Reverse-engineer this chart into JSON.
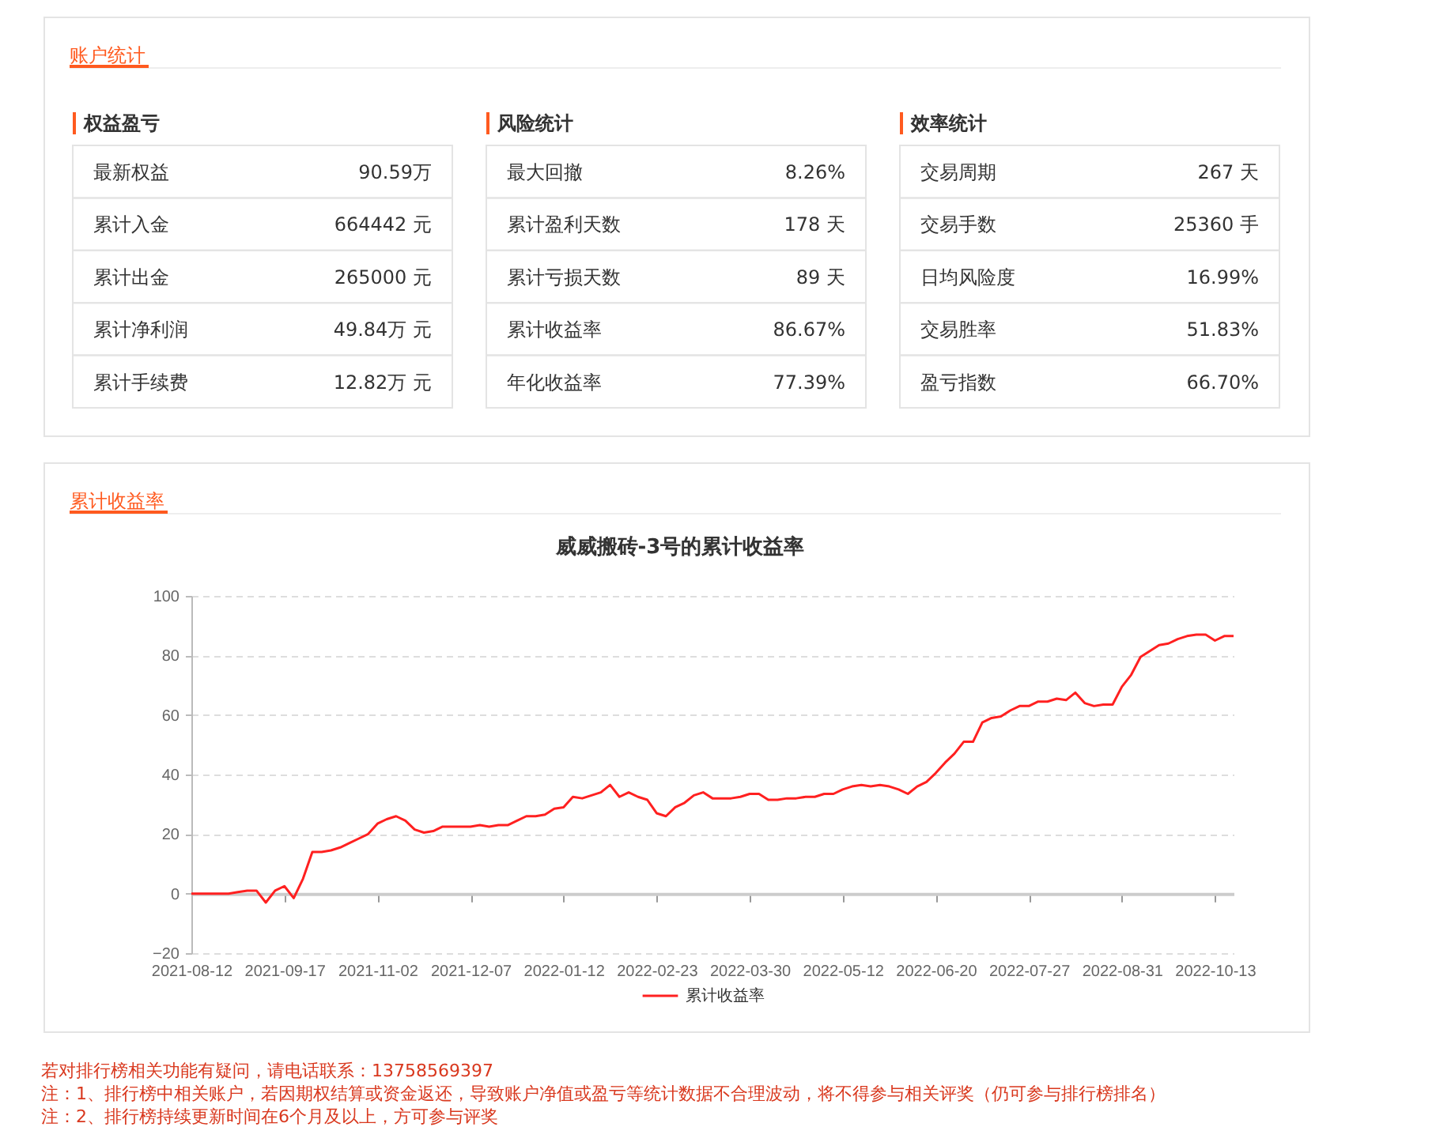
{
  "chart_data": [
    {
      "type": "other",
      "title": "账户统计",
      "annotations": [
        "权益盈亏",
        "最新权益",
        "90.59万",
        "累计入金",
        "664442 元",
        "累计出金",
        "265000 元",
        "累计净利润",
        "49.84万 元",
        "累计手续费",
        "12.82万 元",
        "风险统计",
        "最大回撤",
        "8.26%",
        "累计盈利天数",
        "178 天",
        "累计亏损天数",
        "89 天",
        "累计收益率",
        "86.67%",
        "年化收益率",
        "77.39%",
        "效率统计",
        "交易周期",
        "267 天",
        "交易手数",
        "25360 手",
        "日均风险度",
        "16.99%",
        "交易胜率",
        "51.83%",
        "盈亏指数",
        "66.70%"
      ]
    },
    {
      "type": "line",
      "title": "累计收益率",
      "subtitle": "威威搬砖-3号的累计收益率",
      "categories": [
        "2021-08-12",
        null,
        null,
        null,
        null,
        null,
        null,
        null,
        null,
        null,
        "2021-09-17",
        null,
        null,
        null,
        null,
        null,
        null,
        null,
        null,
        null,
        "2021-11-02",
        null,
        null,
        null,
        null,
        null,
        null,
        null,
        null,
        null,
        "2021-12-07",
        null,
        null,
        null,
        null,
        null,
        null,
        null,
        null,
        null,
        "2022-01-12",
        null,
        null,
        null,
        null,
        null,
        null,
        null,
        null,
        null,
        "2022-02-23",
        null,
        null,
        null,
        null,
        null,
        null,
        null,
        null,
        null,
        "2022-03-30",
        null,
        null,
        null,
        null,
        null,
        null,
        null,
        null,
        null,
        "2022-05-12",
        null,
        null,
        null,
        null,
        null,
        null,
        null,
        null,
        null,
        "2022-06-20",
        null,
        null,
        null,
        null,
        null,
        null,
        null,
        null,
        null,
        "2022-07-27",
        null,
        null,
        null,
        null,
        null,
        null,
        null,
        null,
        null,
        "2022-08-31",
        null,
        null,
        null,
        null,
        null,
        null,
        null,
        null,
        null,
        "2022-10-13",
        null,
        null
      ],
      "series": [
        {
          "name": "累计收益率",
          "color": "#ff2020",
          "values": [
            0,
            0,
            0,
            0,
            0,
            0.5,
            1,
            1,
            -3,
            1,
            2.5,
            -1.5,
            5,
            14,
            14,
            14.5,
            15.5,
            17,
            18.5,
            20,
            23.5,
            25,
            26,
            24.5,
            21.5,
            20.5,
            21,
            22.5,
            22.5,
            22.5,
            22.5,
            23,
            22.5,
            23,
            23,
            24.5,
            26,
            26,
            26.5,
            28.5,
            29,
            32.5,
            32,
            33,
            34,
            36.5,
            32.5,
            34,
            32.5,
            31.5,
            27,
            26,
            29,
            30.5,
            33,
            34,
            32,
            32,
            32,
            32.5,
            33.5,
            33.5,
            31.5,
            31.5,
            32,
            32,
            32.5,
            32.5,
            33.5,
            33.5,
            35,
            36,
            36.5,
            36,
            36.5,
            36,
            35,
            33.5,
            36,
            37.5,
            40.5,
            44,
            47,
            51,
            51,
            57.5,
            59,
            59.5,
            61.5,
            63,
            63,
            64.5,
            64.5,
            65.5,
            65,
            67.5,
            64,
            63,
            63.5,
            63.5,
            69.5,
            73.5,
            79.5,
            81.5,
            83.5,
            84,
            85.5,
            86.5,
            87,
            87,
            85,
            86.5,
            86.5
          ]
        }
      ],
      "ylim": [
        -20,
        100
      ],
      "yticks": [
        -20,
        0,
        20,
        40,
        60,
        80,
        100
      ],
      "grid": "y",
      "legend": "bottom",
      "annotations": [
        "若对排行榜相关功能有疑问，请电话联系：13758569397",
        "注：1、排行榜中相关账户，若因期权结算或资金返还，导致账户净值或盈亏等统计数据不合理波动，将不得参与相关评奖（仍可参与排行榜排名）",
        "注：2、排行榜持续更新时间在6个月及以上，方可参与评奖"
      ]
    }
  ]
}
